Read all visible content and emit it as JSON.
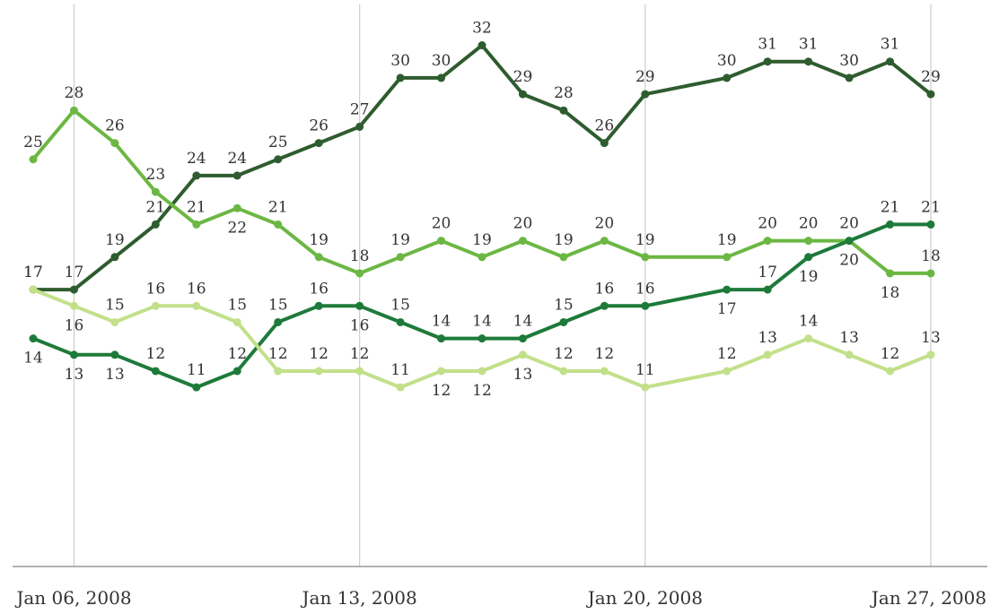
{
  "chart_data": {
    "type": "line",
    "title": "",
    "xlabel": "",
    "ylabel": "",
    "ylim": [
      0,
      35
    ],
    "grid": "vertical",
    "legend": "none",
    "x_ticks": [
      "Jan 06, 2008",
      "Jan 13, 2008",
      "Jan 20, 2008",
      "Jan 27, 2008"
    ],
    "x": [
      "2008-01-05",
      "2008-01-06",
      "2008-01-07",
      "2008-01-08",
      "2008-01-09",
      "2008-01-10",
      "2008-01-11",
      "2008-01-12",
      "2008-01-13",
      "2008-01-14",
      "2008-01-15",
      "2008-01-16",
      "2008-01-17",
      "2008-01-18",
      "2008-01-19",
      "2008-01-20",
      "2008-01-21",
      "2008-01-22",
      "2008-01-23",
      "2008-01-24",
      "2008-01-25",
      "2008-01-26",
      "2008-01-27"
    ],
    "series": [
      {
        "color": "#2e5c2e",
        "values": [
          17,
          17,
          19,
          21,
          24,
          24,
          25,
          26,
          27,
          30,
          30,
          32,
          29,
          28,
          26,
          29,
          null,
          30,
          31,
          31,
          30,
          31,
          29
        ],
        "label_pos": [
          "a",
          "a",
          "a",
          "a",
          "a",
          "a",
          "a",
          "a",
          "a",
          "a",
          "a",
          "a",
          "a",
          "a",
          "a",
          "a",
          "a",
          "a",
          "a",
          "a",
          "a",
          "a",
          "a"
        ]
      },
      {
        "color": "#6cb743",
        "values": [
          25,
          28,
          26,
          23,
          21,
          22,
          21,
          19,
          18,
          19,
          20,
          19,
          20,
          19,
          20,
          19,
          null,
          19,
          20,
          20,
          20,
          18,
          18
        ],
        "label_pos": [
          "a",
          "a",
          "a",
          "a",
          "a",
          "b",
          "a",
          "a",
          "a",
          "a",
          "a",
          "a",
          "a",
          "a",
          "a",
          "a",
          "a",
          "a",
          "a",
          "a",
          "a",
          "b",
          "a"
        ]
      },
      {
        "color": "#1e7a3a",
        "values": [
          14,
          13,
          13,
          12,
          11,
          12,
          15,
          16,
          16,
          15,
          14,
          14,
          14,
          15,
          16,
          16,
          null,
          17,
          17,
          19,
          20,
          21,
          21
        ],
        "label_pos": [
          "b",
          "b",
          "b",
          "a",
          "a",
          "a",
          "a",
          "a",
          "b",
          "a",
          "a",
          "a",
          "a",
          "a",
          "a",
          "a",
          "a",
          "b",
          "a",
          "b",
          "b",
          "a",
          "a"
        ]
      },
      {
        "color": "#c2e08a",
        "values": [
          17,
          16,
          15,
          16,
          16,
          15,
          12,
          12,
          12,
          11,
          12,
          12,
          13,
          12,
          12,
          11,
          null,
          12,
          13,
          14,
          13,
          12,
          13
        ],
        "label_pos": [
          "a",
          "b",
          "a",
          "a",
          "a",
          "a",
          "a",
          "a",
          "a",
          "a",
          "b",
          "b",
          "b",
          "a",
          "a",
          "a",
          "a",
          "a",
          "a",
          "a",
          "a",
          "a",
          "a"
        ]
      }
    ]
  }
}
